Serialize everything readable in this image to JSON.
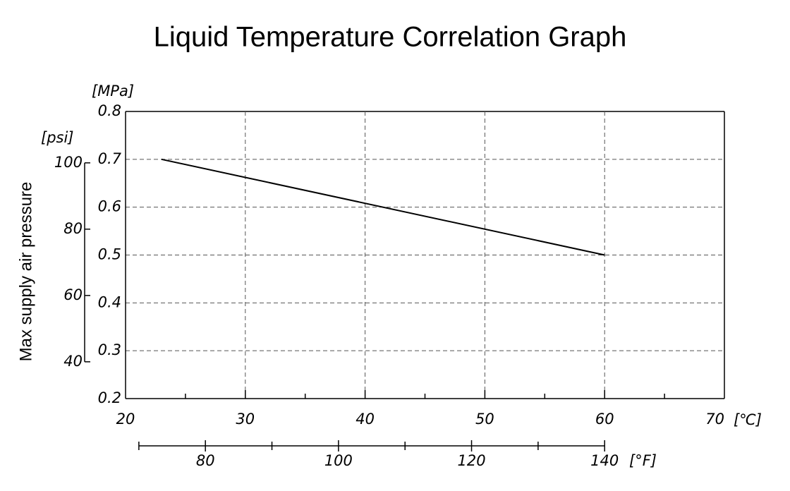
{
  "chart_data": {
    "type": "line",
    "title": "Liquid Temperature Correlation Graph",
    "y_label": "Max supply air pressure",
    "y_unit": "[MPa]",
    "y2_unit": "[psi]",
    "x_unit": "[℃]",
    "x2_unit": "[°F]",
    "x": [
      23,
      60
    ],
    "series": [
      {
        "name": "Max supply air pressure",
        "color": "#000000",
        "values": [
          0.7,
          0.5
        ]
      }
    ],
    "xlim": [
      20,
      70
    ],
    "xticks": [
      20,
      30,
      40,
      50,
      60,
      70
    ],
    "xminor_ticks": [
      25,
      35,
      45,
      55,
      65
    ],
    "ylim": [
      0.2,
      0.8
    ],
    "yticks": [
      0.2,
      0.3,
      0.4,
      0.5,
      0.6,
      0.7,
      0.8
    ],
    "y2lim": [
      28.9,
      115.5
    ],
    "y2ticks": [
      40,
      60,
      80,
      100
    ],
    "x2lim": [
      68,
      158
    ],
    "x2ticks": [
      80,
      100,
      120,
      140
    ],
    "x2minor_ticks": [
      70,
      90,
      110,
      130
    ],
    "grid": true
  }
}
